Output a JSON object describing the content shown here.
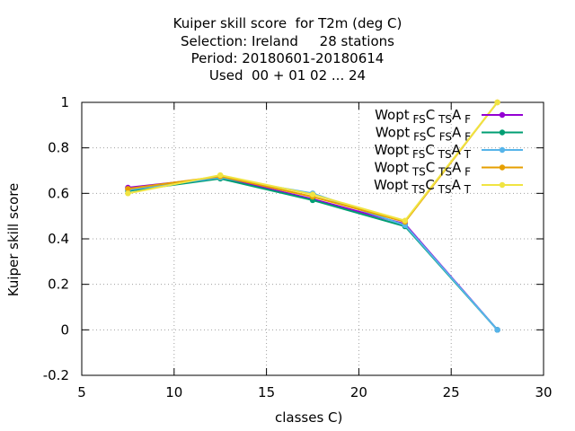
{
  "title_lines": [
    "Kuiper skill score  for T2m (deg C)",
    "Selection: Ireland     28 stations",
    "Period: 20180601-20180614",
    "Used  00 + 01 02 ... 24"
  ],
  "chart_data": {
    "type": "line",
    "xlabel": "classes C)",
    "ylabel": "Kuiper skill score",
    "xlim": [
      5,
      30
    ],
    "ylim": [
      -0.2,
      1.0
    ],
    "xticks": [
      5,
      10,
      15,
      20,
      25,
      30
    ],
    "yticks": [
      -0.2,
      0,
      0.2,
      0.4,
      0.6,
      0.8,
      1
    ],
    "ytick_labels": [
      "-0.2",
      "0",
      "0.2",
      "0.4",
      "0.6",
      "0.8",
      "1"
    ],
    "xtick_labels": [
      "5",
      "10",
      "15",
      "20",
      "25",
      "30"
    ],
    "grid": true,
    "legend_position": "top-right",
    "x": [
      7.5,
      12.5,
      17.5,
      22.5,
      27.5
    ],
    "series": [
      {
        "name": {
          "base": "Wopt",
          "parts": [
            [
              "FS",
              "C"
            ],
            [
              "TS",
              "A"
            ],
            [
              "F",
              ""
            ]
          ]
        },
        "legend_text": "Wopt FS C TS A F",
        "color": "#9400d3",
        "values": [
          0.625,
          0.67,
          0.575,
          0.465,
          0.0
        ]
      },
      {
        "name": {
          "base": "Wopt",
          "parts": [
            [
              "FS",
              "C"
            ],
            [
              "FS",
              "A"
            ],
            [
              "F",
              ""
            ]
          ]
        },
        "legend_text": "Wopt FS C FS A F",
        "color": "#009e73",
        "values": [
          0.61,
          0.665,
          0.57,
          0.455,
          0.0
        ]
      },
      {
        "name": {
          "base": "Wopt",
          "parts": [
            [
              "FS",
              "C"
            ],
            [
              "TS",
              "A"
            ],
            [
              "T",
              ""
            ]
          ]
        },
        "legend_text": "Wopt FS C TS A T",
        "color": "#56b4e9",
        "values": [
          0.615,
          0.67,
          0.6,
          0.46,
          0.0
        ]
      },
      {
        "name": {
          "base": "Wopt",
          "parts": [
            [
              "TS",
              "C"
            ],
            [
              "TS",
              "A"
            ],
            [
              "F",
              ""
            ]
          ]
        },
        "legend_text": "Wopt TS C TS A F",
        "color": "#e69f00",
        "values": [
          0.62,
          0.675,
          0.585,
          0.475,
          1.0
        ]
      },
      {
        "name": {
          "base": "Wopt",
          "parts": [
            [
              "TS",
              "C"
            ],
            [
              "TS",
              "A"
            ],
            [
              "T",
              ""
            ]
          ]
        },
        "legend_text": "Wopt TS C TS A T",
        "color": "#f0e442",
        "values": [
          0.6,
          0.68,
          0.595,
          0.48,
          1.0
        ]
      }
    ]
  }
}
